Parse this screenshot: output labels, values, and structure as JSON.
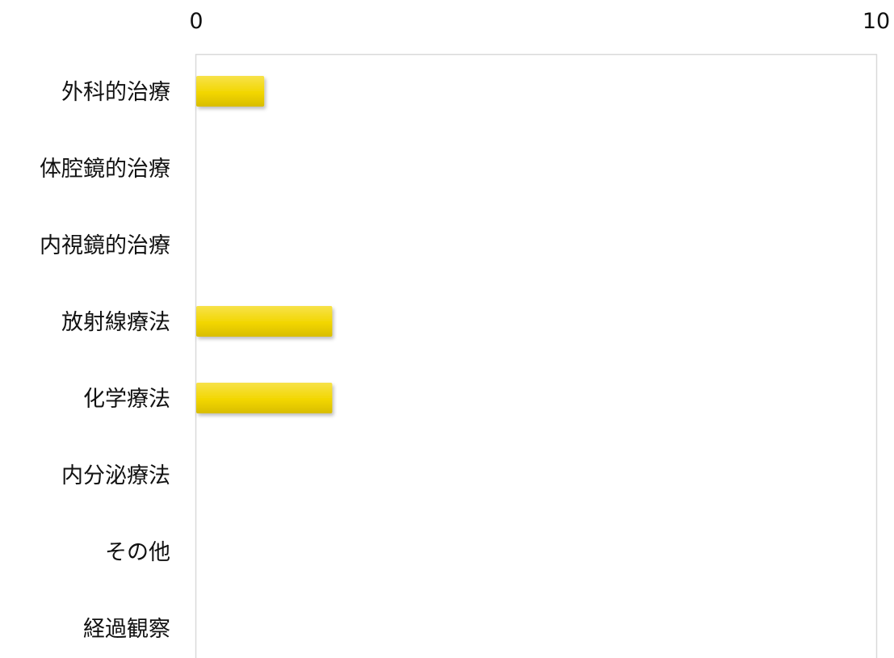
{
  "chart_data": {
    "type": "bar",
    "orientation": "horizontal",
    "categories": [
      "外科的治療",
      "体腔鏡的治療",
      "内視鏡的治療",
      "放射線療法",
      "化学療法",
      "内分泌療法",
      "その他",
      "経過観察"
    ],
    "values": [
      1,
      0,
      0,
      2,
      2,
      0,
      0,
      0
    ],
    "xlim": [
      0,
      10
    ],
    "x_tick_labels": [
      "0",
      "10"
    ],
    "x_axis_position": "top",
    "grid": false,
    "bar_color": "#f2d600",
    "plot_border_color": "#d9d9d9"
  }
}
